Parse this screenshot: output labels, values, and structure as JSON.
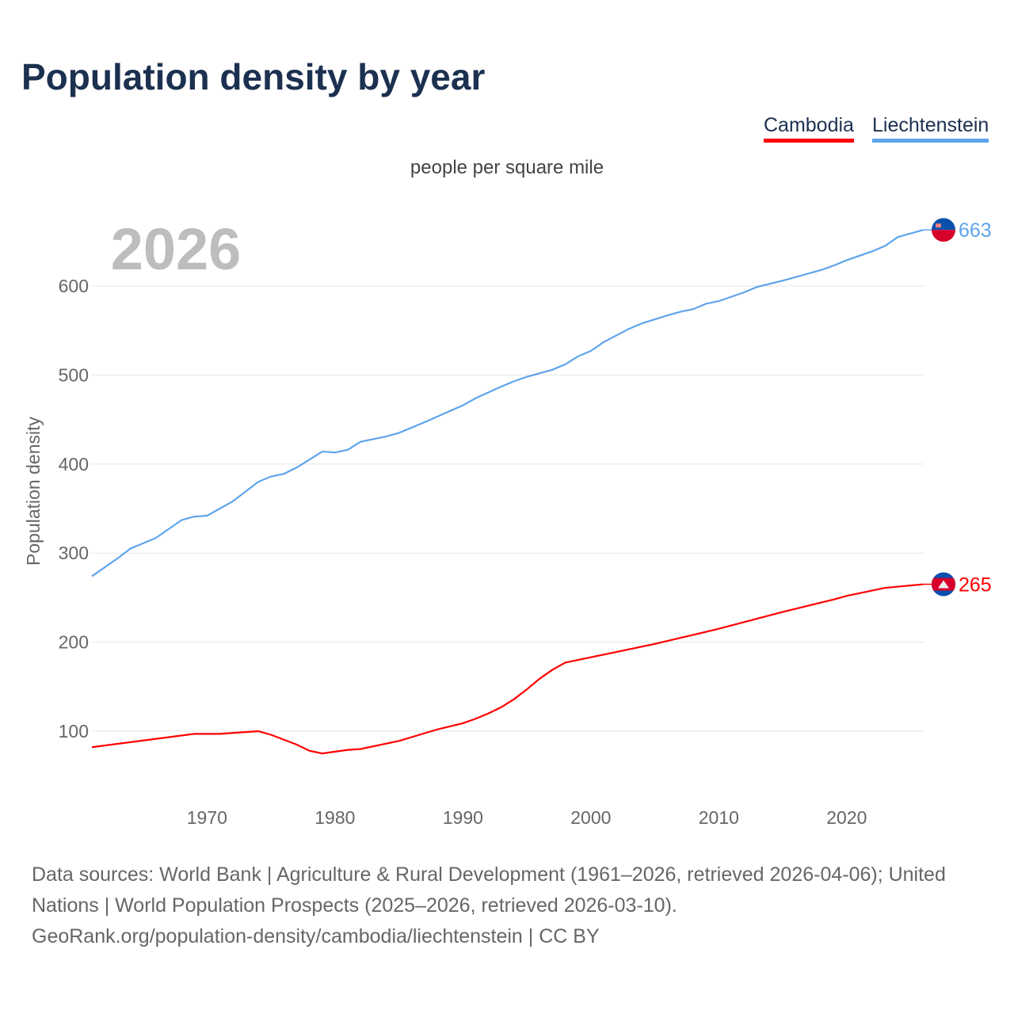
{
  "title": "Population density by year",
  "footer": {
    "line1": "Data sources: World Bank | Agriculture & Rural Development (1961–2026, retrieved 2026-04-06); United Nations | World Population Prospects (2025–2026, retrieved 2026-03-10).",
    "line2": "GeoRank.org/population-density/cambodia/liechtenstein | CC BY"
  },
  "chart_data": {
    "type": "line",
    "title": "Population density by year",
    "subtitle": "people per square mile",
    "year_label": "2026",
    "ylabel": "Population density",
    "xlabel": "",
    "xlim": [
      1961,
      2026
    ],
    "ylim": [
      30,
      690
    ],
    "xticks": [
      1970,
      1980,
      1990,
      2000,
      2010,
      2020
    ],
    "yticks": [
      100,
      200,
      300,
      400,
      500,
      600
    ],
    "grid": true,
    "legend_position": "top-right",
    "series": [
      {
        "name": "Cambodia",
        "color": "#ff0000",
        "end_label": "265",
        "points": [
          [
            1961,
            82
          ],
          [
            1969,
            97
          ],
          [
            1971,
            97
          ],
          [
            1974,
            100
          ],
          [
            1975,
            96
          ],
          [
            1977,
            85
          ],
          [
            1978,
            78
          ],
          [
            1979,
            75
          ],
          [
            1981,
            79
          ],
          [
            1982,
            80
          ],
          [
            1985,
            89
          ],
          [
            1988,
            102
          ],
          [
            1990,
            109
          ],
          [
            1991,
            114
          ],
          [
            1992,
            120
          ],
          [
            1993,
            127
          ],
          [
            1994,
            136
          ],
          [
            1995,
            147
          ],
          [
            1996,
            159
          ],
          [
            1997,
            169
          ],
          [
            1998,
            177
          ],
          [
            2000,
            183
          ],
          [
            2005,
            198
          ],
          [
            2010,
            215
          ],
          [
            2015,
            234
          ],
          [
            2019,
            248
          ],
          [
            2020,
            252
          ],
          [
            2023,
            261
          ],
          [
            2026,
            265
          ]
        ]
      },
      {
        "name": "Liechtenstein",
        "color": "#5fa4ec",
        "end_label": "663",
        "points": [
          [
            1961,
            274
          ],
          [
            1963,
            294
          ],
          [
            1964,
            305
          ],
          [
            1966,
            317
          ],
          [
            1968,
            337
          ],
          [
            1969,
            341
          ],
          [
            1970,
            342
          ],
          [
            1972,
            358
          ],
          [
            1974,
            380
          ],
          [
            1975,
            386
          ],
          [
            1976,
            389
          ],
          [
            1977,
            396
          ],
          [
            1978,
            405
          ],
          [
            1979,
            414
          ],
          [
            1980,
            413
          ],
          [
            1981,
            416
          ],
          [
            1982,
            425
          ],
          [
            1984,
            431
          ],
          [
            1985,
            435
          ],
          [
            1987,
            447
          ],
          [
            1990,
            466
          ],
          [
            1991,
            474
          ],
          [
            1993,
            487
          ],
          [
            1994,
            493
          ],
          [
            1995,
            498
          ],
          [
            1997,
            506
          ],
          [
            1998,
            512
          ],
          [
            1999,
            521
          ],
          [
            2000,
            527
          ],
          [
            2001,
            537
          ],
          [
            2003,
            552
          ],
          [
            2004,
            558
          ],
          [
            2006,
            567
          ],
          [
            2007,
            571
          ],
          [
            2008,
            574
          ],
          [
            2009,
            580
          ],
          [
            2010,
            583
          ],
          [
            2012,
            593
          ],
          [
            2013,
            599
          ],
          [
            2015,
            606
          ],
          [
            2018,
            618
          ],
          [
            2019,
            623
          ],
          [
            2020,
            629
          ],
          [
            2021,
            634
          ],
          [
            2022,
            639
          ],
          [
            2023,
            645
          ],
          [
            2024,
            655
          ],
          [
            2025,
            659
          ],
          [
            2026,
            663
          ]
        ]
      }
    ]
  }
}
